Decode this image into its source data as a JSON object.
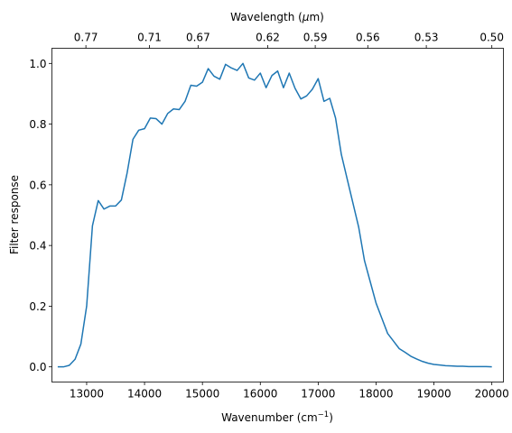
{
  "chart_data": {
    "type": "line",
    "xlabel": "Wavenumber (cm",
    "xlabel_superscript": "−1",
    "xlabel_suffix": ")",
    "ylabel": "Filter response",
    "top_xlabel": "Wavelength (",
    "top_xlabel_mu": "μ",
    "top_xlabel_suffix": "m)",
    "xlim": [
      12400,
      20200
    ],
    "ylim": [
      -0.05,
      1.05
    ],
    "xticks": [
      13000,
      14000,
      15000,
      16000,
      17000,
      18000,
      19000,
      20000
    ],
    "xtick_labels": [
      "13000",
      "14000",
      "15000",
      "16000",
      "17000",
      "18000",
      "19000",
      "20000"
    ],
    "yticks": [
      0.0,
      0.2,
      0.4,
      0.6,
      0.8,
      1.0
    ],
    "ytick_labels": [
      "0.0",
      "0.2",
      "0.4",
      "0.6",
      "0.8",
      "1.0"
    ],
    "top_ticks": [
      {
        "wavenumber": 12987,
        "label": "0.77"
      },
      {
        "wavenumber": 14085,
        "label": "0.71"
      },
      {
        "wavenumber": 14925,
        "label": "0.67"
      },
      {
        "wavenumber": 16129,
        "label": "0.62"
      },
      {
        "wavenumber": 16949,
        "label": "0.59"
      },
      {
        "wavenumber": 17857,
        "label": "0.56"
      },
      {
        "wavenumber": 18868,
        "label": "0.53"
      },
      {
        "wavenumber": 20000,
        "label": "0.50"
      }
    ],
    "grid": false,
    "line_color": "#1f77b4",
    "series": [
      {
        "x": [
          12500,
          12600,
          12700,
          12800,
          12900,
          13000,
          13100,
          13200,
          13300,
          13400,
          13500,
          13600,
          13700,
          13800,
          13900,
          14000,
          14100,
          14200,
          14300,
          14400,
          14500,
          14600,
          14700,
          14800,
          14900,
          15000,
          15100,
          15200,
          15300,
          15400,
          15500,
          15600,
          15700,
          15800,
          15900,
          16000,
          16100,
          16200,
          16300,
          16400,
          16500,
          16600,
          16700,
          16800,
          16900,
          17000,
          17100,
          17200,
          17300,
          17400,
          17500,
          17600,
          17700,
          17800,
          17900,
          18000,
          18100,
          18200,
          18300,
          18400,
          18500,
          18600,
          18700,
          18800,
          18900,
          19000,
          19100,
          19200,
          19300,
          19400,
          19500,
          19600,
          19700,
          19800,
          19900,
          20000
        ],
        "y": [
          0.0,
          0.0,
          0.005,
          0.025,
          0.075,
          0.2,
          0.465,
          0.548,
          0.52,
          0.53,
          0.53,
          0.55,
          0.64,
          0.75,
          0.78,
          0.785,
          0.82,
          0.818,
          0.8,
          0.835,
          0.85,
          0.848,
          0.875,
          0.928,
          0.925,
          0.938,
          0.983,
          0.958,
          0.948,
          0.997,
          0.985,
          0.977,
          1.0,
          0.952,
          0.945,
          0.968,
          0.92,
          0.96,
          0.975,
          0.92,
          0.968,
          0.918,
          0.883,
          0.893,
          0.915,
          0.95,
          0.875,
          0.885,
          0.82,
          0.7,
          0.62,
          0.54,
          0.46,
          0.35,
          0.28,
          0.21,
          0.16,
          0.11,
          0.085,
          0.06,
          0.048,
          0.035,
          0.026,
          0.018,
          0.012,
          0.008,
          0.006,
          0.004,
          0.003,
          0.002,
          0.002,
          0.001,
          0.001,
          0.001,
          0.001,
          0.0
        ]
      }
    ]
  }
}
